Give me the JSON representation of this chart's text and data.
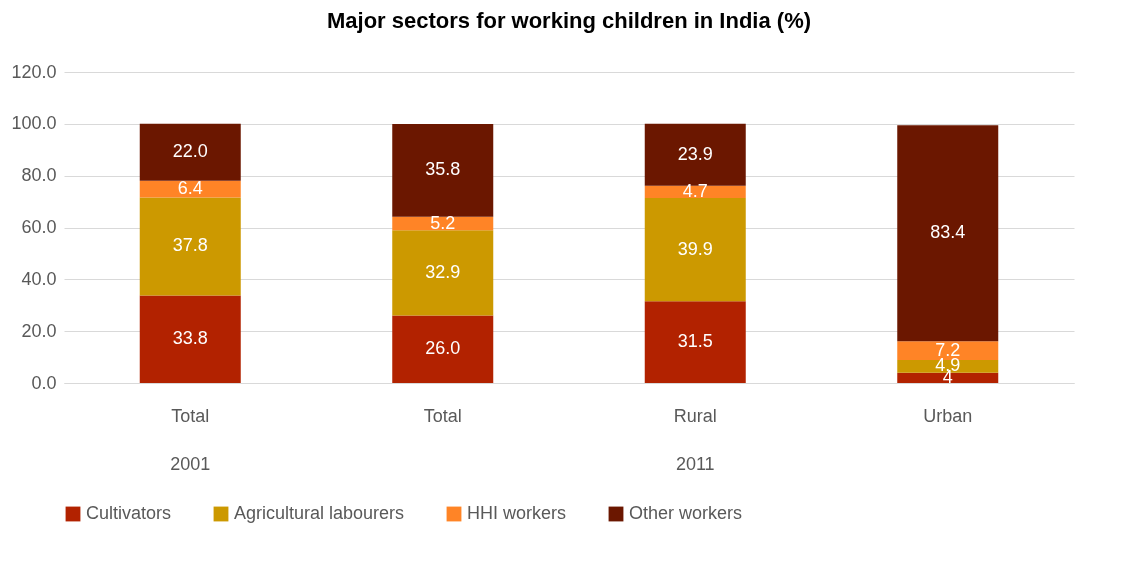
{
  "chart_data": {
    "type": "bar",
    "stacked": true,
    "title": "Major sectors for working children in India (%)",
    "categories": [
      "Total",
      "Total",
      "Rural",
      "Urban"
    ],
    "annotations": [
      "2001",
      "2011"
    ],
    "series": [
      {
        "name": "Cultivators",
        "color": "#b22200",
        "values": [
          33.8,
          26.0,
          31.5,
          4
        ],
        "value_labels": [
          "33.8",
          "26.0",
          "31.5",
          "4"
        ]
      },
      {
        "name": "Agricultural labourers",
        "color": "#cc9900",
        "values": [
          37.8,
          32.9,
          39.9,
          4.9
        ],
        "value_labels": [
          "37.8",
          "32.9",
          "39.9",
          "4.9"
        ]
      },
      {
        "name": "HHI workers",
        "color": "#ff8426",
        "values": [
          6.4,
          5.2,
          4.7,
          7.2
        ],
        "value_labels": [
          "6.4",
          "5.2",
          "4.7",
          "7.2"
        ]
      },
      {
        "name": "Other workers",
        "color": "#6b1700",
        "values": [
          22.0,
          35.8,
          23.9,
          83.4
        ],
        "value_labels": [
          "22.0",
          "35.8",
          "23.9",
          "83.4"
        ]
      }
    ],
    "ylim": [
      0,
      120
    ],
    "yticks": [
      {
        "value": 0,
        "label": "0.0"
      },
      {
        "value": 20,
        "label": "20.0"
      },
      {
        "value": 40,
        "label": "40.0"
      },
      {
        "value": 60,
        "label": "60.0"
      },
      {
        "value": 80,
        "label": "80.0"
      },
      {
        "value": 100,
        "label": "100.0"
      },
      {
        "value": 120,
        "label": "120.0"
      }
    ],
    "grid": "y",
    "legend": "bottom"
  }
}
